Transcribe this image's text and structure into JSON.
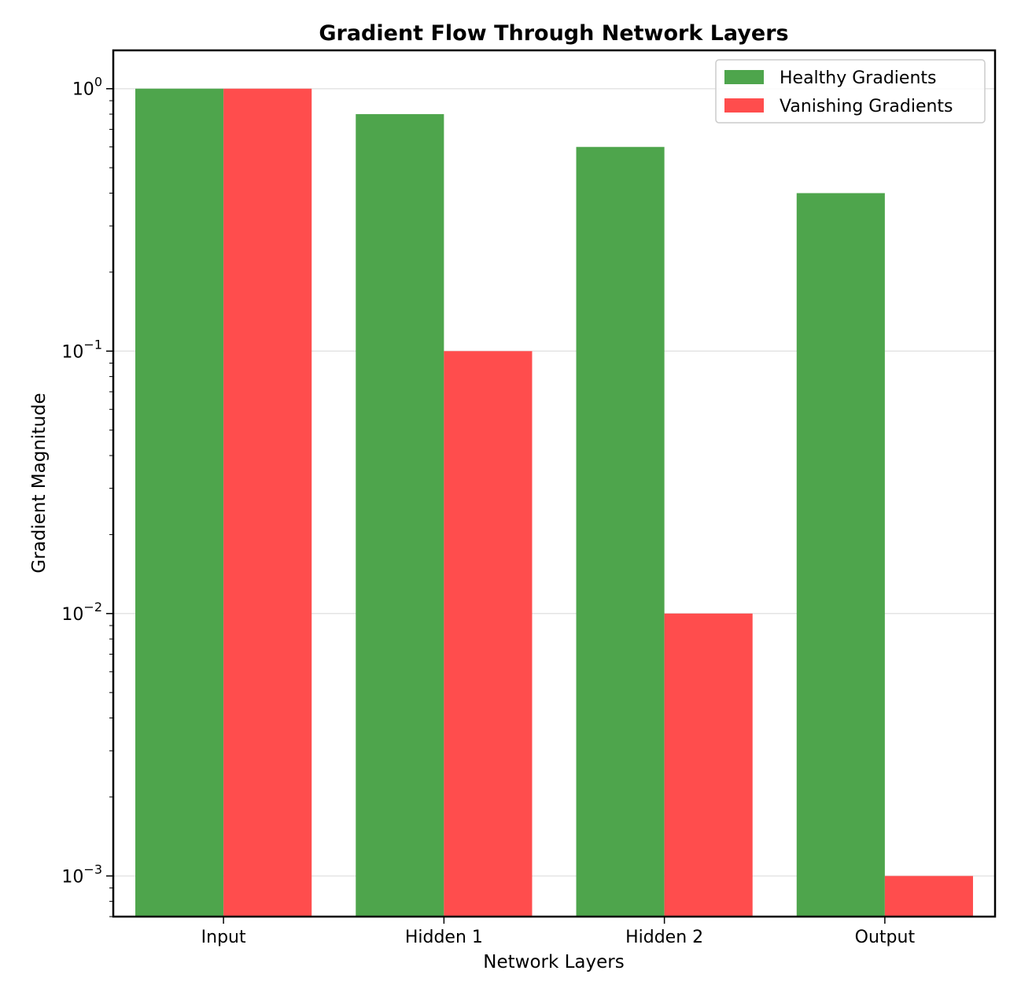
{
  "chart_data": {
    "type": "bar",
    "title": "Gradient Flow Through Network Layers",
    "xlabel": "Network Layers",
    "ylabel": "Gradient Magnitude",
    "yscale": "log",
    "ylim": [
      0.0007,
      1.4
    ],
    "yticks": [
      {
        "value": 0.001,
        "base": "10",
        "exp": "−3"
      },
      {
        "value": 0.01,
        "base": "10",
        "exp": "−2"
      },
      {
        "value": 0.1,
        "base": "10",
        "exp": "−1"
      },
      {
        "value": 1,
        "base": "10",
        "exp": "0"
      }
    ],
    "categories": [
      "Input",
      "Hidden 1",
      "Hidden 2",
      "Output"
    ],
    "series": [
      {
        "name": "Healthy Gradients",
        "color": "#4ea54c",
        "values": [
          1.0,
          0.8,
          0.6,
          0.4
        ]
      },
      {
        "name": "Vanishing Gradients",
        "color": "#ff4d4d",
        "values": [
          1.0,
          0.1,
          0.01,
          0.001
        ]
      }
    ],
    "grid": "y",
    "legend": "top-right"
  }
}
